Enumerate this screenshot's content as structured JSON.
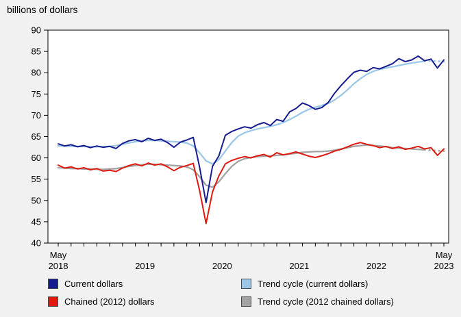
{
  "chart_data": {
    "type": "line",
    "title": "billions of dollars",
    "xlabel": "",
    "ylabel": "billions of dollars",
    "ylim": [
      40,
      90
    ],
    "y_ticks": [
      40,
      45,
      50,
      55,
      60,
      65,
      70,
      75,
      80,
      85,
      90
    ],
    "n_points": 61,
    "x_start": "May 2018",
    "x_end": "May 2023",
    "frequency": "monthly",
    "x_axis": {
      "edge_label": "May",
      "years": [
        {
          "label": "2018",
          "from": 0,
          "to": 0
        },
        {
          "label": "2019",
          "from": 8,
          "to": 19
        },
        {
          "label": "2020",
          "from": 20,
          "to": 31
        },
        {
          "label": "2021",
          "from": 32,
          "to": 43
        },
        {
          "label": "2022",
          "from": 44,
          "to": 55
        },
        {
          "label": "2023",
          "from": 60,
          "to": 60
        }
      ]
    },
    "series": [
      {
        "name": "Trend cycle (current dollars)",
        "color": "#9cc7e8",
        "width": 2.3,
        "dotted_tail": 3,
        "values": [
          62.8,
          62.8,
          62.7,
          62.7,
          62.7,
          62.6,
          62.6,
          62.6,
          62.7,
          62.9,
          63.2,
          63.5,
          63.8,
          64.0,
          64.1,
          64.1,
          64.0,
          63.9,
          63.8,
          63.7,
          63.5,
          62.8,
          61.2,
          59.3,
          58.6,
          59.6,
          61.6,
          63.6,
          65.1,
          65.9,
          66.4,
          66.8,
          67.1,
          67.4,
          67.8,
          68.3,
          69.0,
          69.8,
          70.7,
          71.4,
          71.9,
          72.3,
          72.8,
          73.6,
          74.7,
          76.0,
          77.4,
          78.6,
          79.6,
          80.3,
          80.8,
          81.1,
          81.4,
          81.7,
          82.0,
          82.3,
          82.5,
          82.7,
          82.8,
          82.7,
          82.6
        ]
      },
      {
        "name": "Trend cycle (2012 chained dollars)",
        "color": "#a3a3a3",
        "width": 2.3,
        "dotted_tail": 3,
        "values": [
          57.7,
          57.6,
          57.5,
          57.5,
          57.4,
          57.4,
          57.3,
          57.3,
          57.4,
          57.5,
          57.7,
          58.0,
          58.2,
          58.4,
          58.5,
          58.5,
          58.4,
          58.3,
          58.2,
          58.1,
          57.9,
          57.2,
          55.6,
          53.6,
          53.1,
          54.4,
          56.3,
          58.0,
          59.2,
          59.8,
          60.1,
          60.3,
          60.4,
          60.5,
          60.6,
          60.7,
          60.9,
          61.1,
          61.3,
          61.4,
          61.5,
          61.5,
          61.6,
          61.8,
          62.1,
          62.4,
          62.7,
          62.9,
          63.0,
          62.9,
          62.8,
          62.6,
          62.4,
          62.3,
          62.2,
          62.1,
          62.0,
          61.9,
          61.8,
          61.7,
          61.6
        ]
      },
      {
        "name": "Current dollars",
        "color": "#151b8f",
        "width": 2,
        "dotted_tail": 0,
        "values": [
          63.3,
          62.8,
          63.1,
          62.6,
          62.9,
          62.4,
          62.8,
          62.5,
          62.7,
          62.2,
          63.4,
          64.0,
          64.3,
          63.8,
          64.6,
          64.1,
          64.4,
          63.6,
          62.5,
          63.7,
          64.2,
          64.8,
          57.8,
          49.5,
          58.0,
          60.5,
          65.3,
          66.2,
          66.8,
          67.3,
          67.0,
          67.8,
          68.3,
          67.6,
          69.0,
          68.6,
          70.8,
          71.6,
          72.9,
          72.3,
          71.4,
          71.8,
          73.0,
          75.2,
          77.0,
          78.6,
          80.1,
          80.6,
          80.3,
          81.2,
          80.9,
          81.5,
          82.1,
          83.3,
          82.6,
          83.0,
          83.9,
          82.8,
          83.2,
          81.1,
          83.0
        ]
      },
      {
        "name": "Chained (2012) dollars",
        "color": "#e0190f",
        "width": 2,
        "dotted_tail": 0,
        "values": [
          58.3,
          57.6,
          57.9,
          57.4,
          57.7,
          57.2,
          57.5,
          56.9,
          57.1,
          56.8,
          57.6,
          58.2,
          58.6,
          58.1,
          58.8,
          58.3,
          58.6,
          57.9,
          57.0,
          57.8,
          58.2,
          58.7,
          52.3,
          44.6,
          52.0,
          55.8,
          58.6,
          59.4,
          59.9,
          60.3,
          60.0,
          60.5,
          60.8,
          60.2,
          61.2,
          60.7,
          61.0,
          61.4,
          60.9,
          60.4,
          60.1,
          60.5,
          61.0,
          61.6,
          62.0,
          62.6,
          63.2,
          63.6,
          63.2,
          62.9,
          62.4,
          62.7,
          62.2,
          62.6,
          62.0,
          62.3,
          62.7,
          62.1,
          62.4,
          60.6,
          62.1
        ]
      }
    ],
    "legend": [
      {
        "label": "Current dollars",
        "color": "#151b8f"
      },
      {
        "label": "Trend cycle (current dollars)",
        "color": "#9cc7e8"
      },
      {
        "label": "Chained (2012) dollars",
        "color": "#e0190f"
      },
      {
        "label": "Trend cycle (2012 chained dollars)",
        "color": "#a3a3a3"
      }
    ],
    "layout": {
      "grid": false,
      "legend_position": "bottom"
    }
  }
}
